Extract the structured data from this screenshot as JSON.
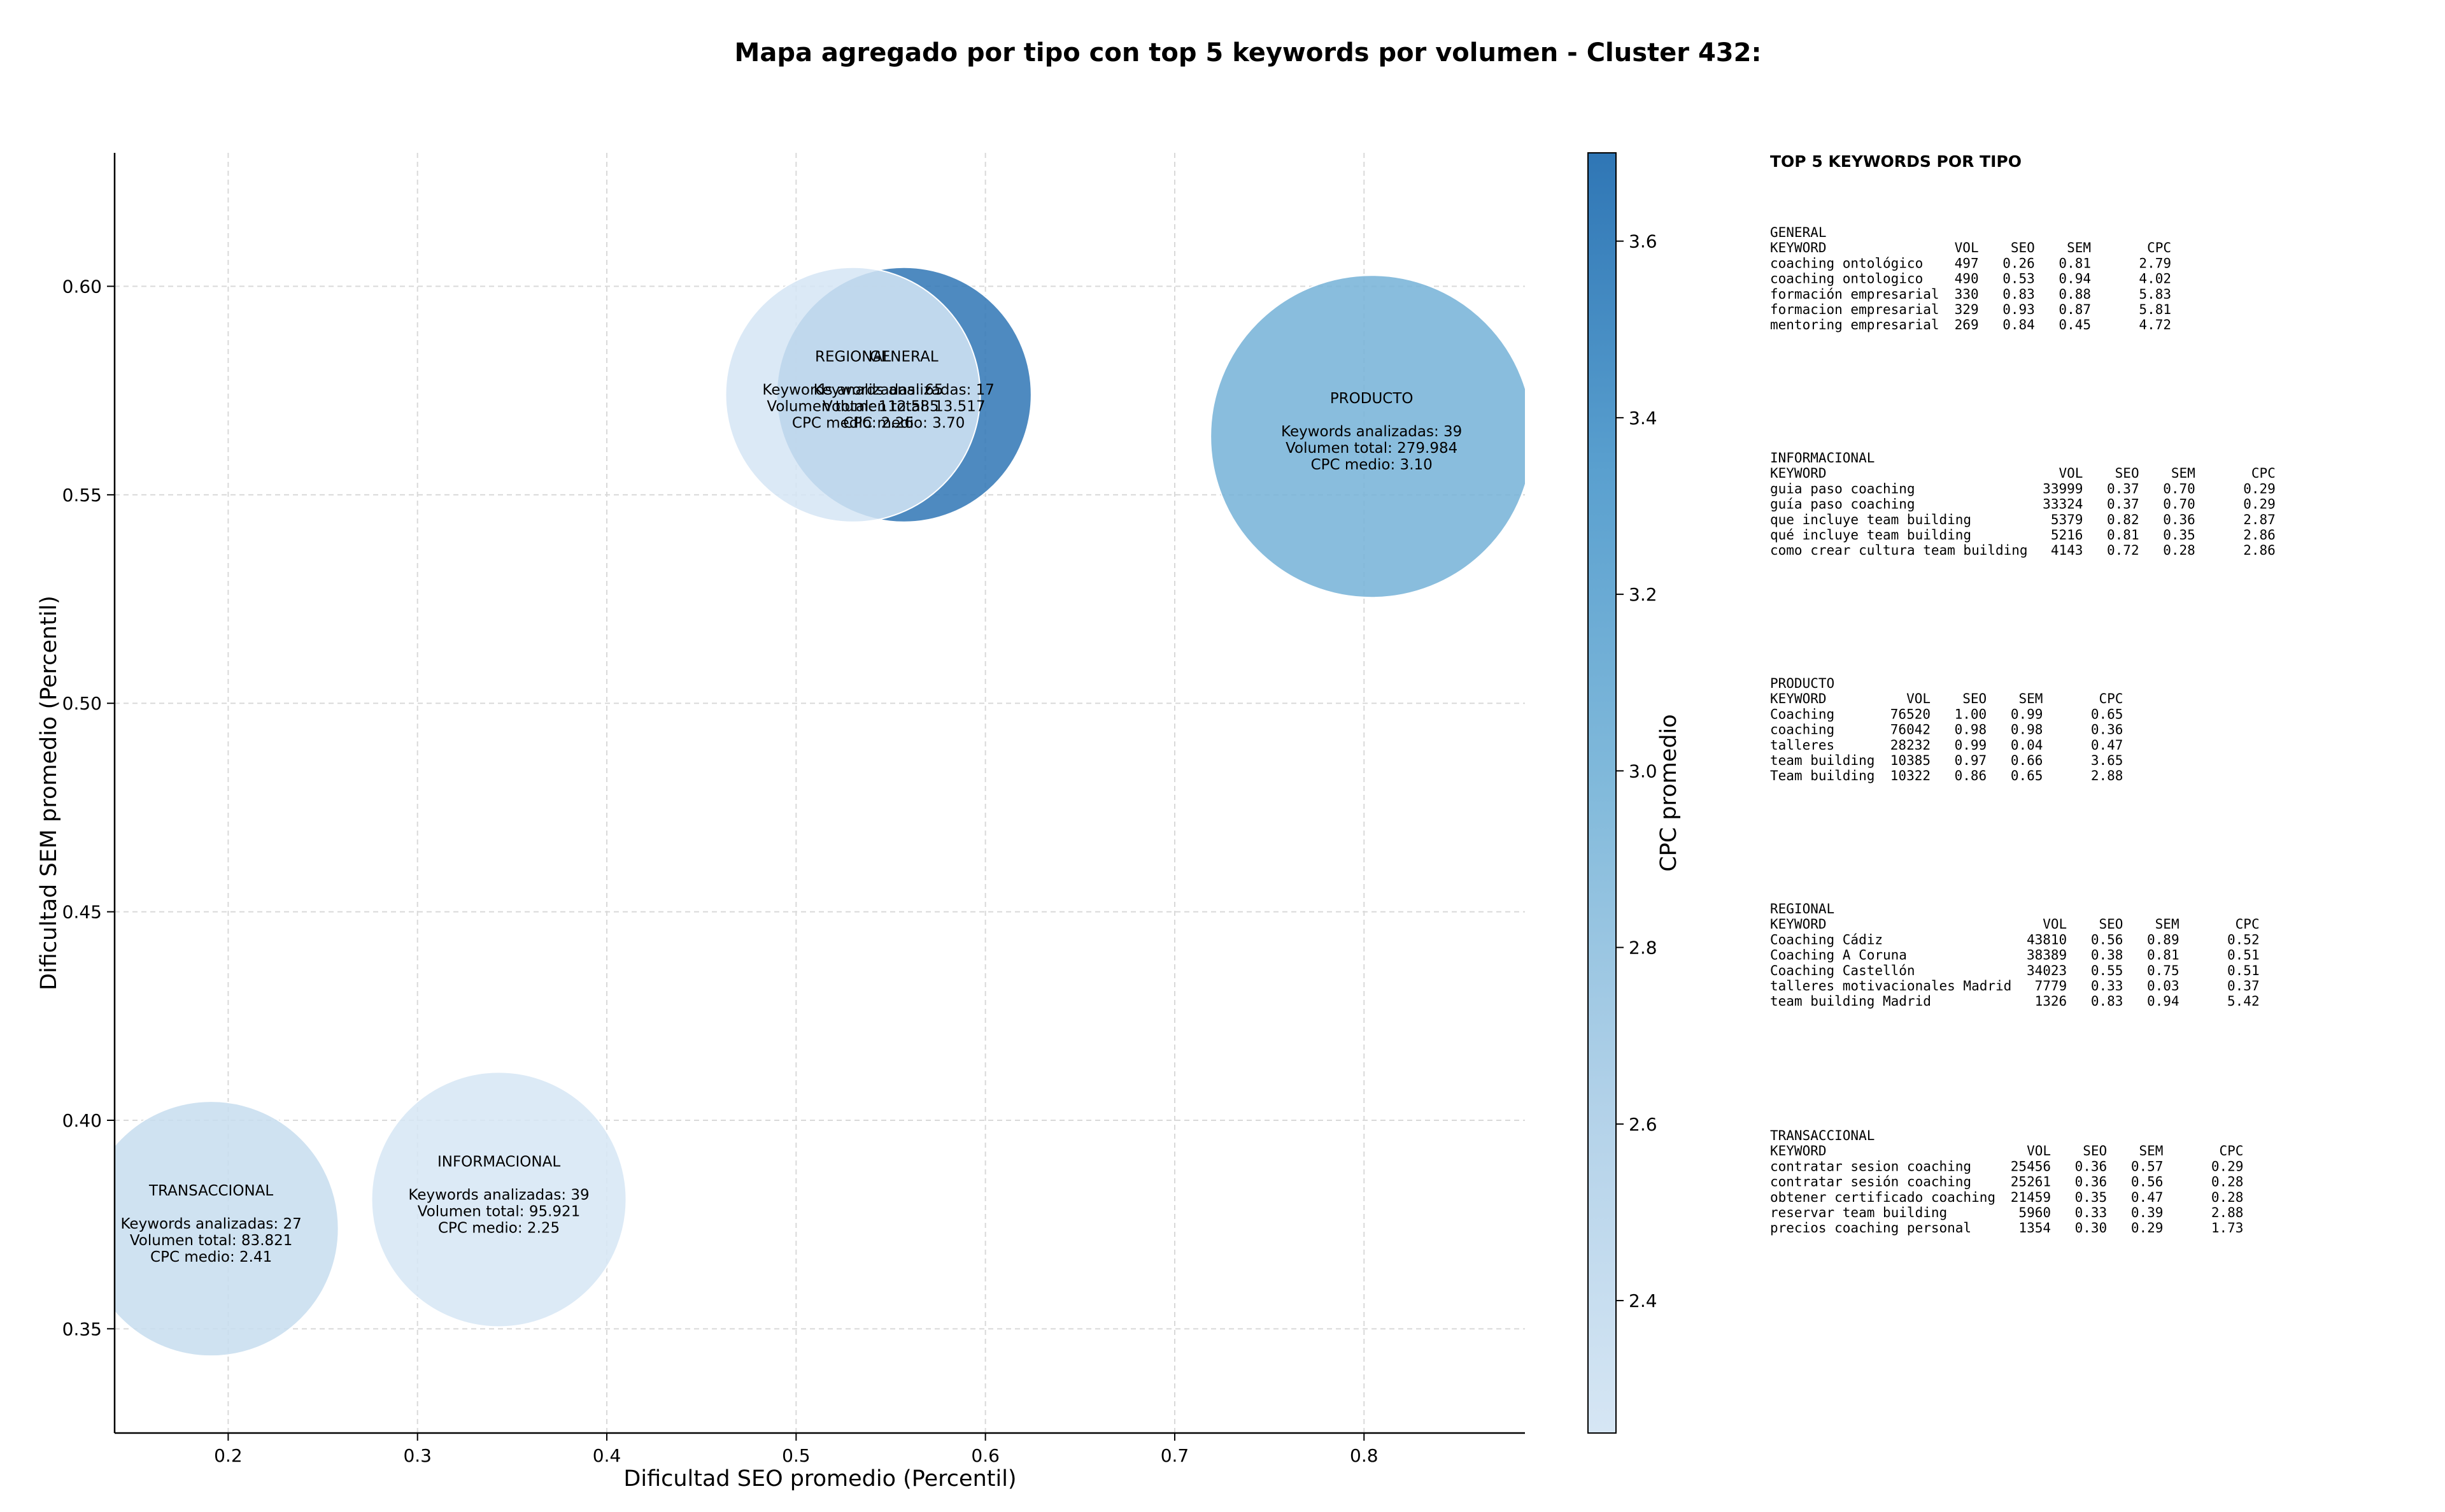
{
  "chart_data": {
    "type": "scatter",
    "subtype": "bubble",
    "title": "Mapa agregado por tipo con top 5 keywords por volumen - Cluster 432:",
    "xlabel": "Dificultad SEO promedio (Percentil)",
    "ylabel": "Dificultad SEM promedio (Percentil)",
    "xlim": [
      0.14,
      0.885
    ],
    "ylim": [
      0.325,
      0.632
    ],
    "x_ticks": [
      0.2,
      0.3,
      0.4,
      0.5,
      0.6,
      0.7,
      0.8
    ],
    "x_tick_labels": [
      "0.2",
      "0.3",
      "0.4",
      "0.5",
      "0.6",
      "0.7",
      "0.8"
    ],
    "y_ticks": [
      0.35,
      0.4,
      0.45,
      0.5,
      0.55,
      0.6
    ],
    "y_tick_labels": [
      "0.35",
      "0.40",
      "0.45",
      "0.50",
      "0.55",
      "0.60"
    ],
    "grid": true,
    "colorbar": {
      "label": "CPC promedio",
      "min": 2.25,
      "max": 3.7,
      "ticks": [
        2.4,
        2.6,
        2.8,
        3.0,
        3.2,
        3.4,
        3.6
      ],
      "tick_labels": [
        "2.4",
        "2.6",
        "2.8",
        "3.0",
        "3.2",
        "3.4",
        "3.6"
      ]
    },
    "points": [
      {
        "name": "GENERAL",
        "x": 0.557,
        "y": 0.574,
        "size": 13517,
        "cpc": 3.7,
        "lines": [
          "Keywords analizadas: 17",
          "Volumen total: 13.517",
          "CPC medio: 3.70"
        ]
      },
      {
        "name": "PRODUCTO",
        "x": 0.804,
        "y": 0.564,
        "size": 279984,
        "cpc": 3.1,
        "lines": [
          "Keywords analizadas: 39",
          "Volumen total: 279.984",
          "CPC medio: 3.10"
        ]
      },
      {
        "name": "REGIONAL",
        "x": 0.53,
        "y": 0.574,
        "size": 112585,
        "cpc": 2.26,
        "lines": [
          "Keywords analizadas: 65",
          "Volumen total: 112.585",
          "CPC medio: 2.26"
        ]
      },
      {
        "name": "INFORMACIONAL",
        "x": 0.343,
        "y": 0.381,
        "size": 95921,
        "cpc": 2.25,
        "lines": [
          "Keywords analizadas: 39",
          "Volumen total: 95.921",
          "CPC medio: 2.25"
        ]
      },
      {
        "name": "TRANSACCIONAL",
        "x": 0.191,
        "y": 0.374,
        "size": 83821,
        "cpc": 2.41,
        "lines": [
          "Keywords analizadas: 27",
          "Volumen total: 83.821",
          "CPC medio: 2.41"
        ]
      }
    ]
  },
  "panel": {
    "heading": "TOP 5 KEYWORDS POR TIPO",
    "header_cols": [
      "KEYWORD",
      "VOL",
      "SEO",
      "SEM",
      "CPC"
    ],
    "groups": [
      {
        "name": "GENERAL",
        "rows": [
          [
            "coaching ontológico",
            "497",
            "0.26",
            "0.81",
            "2.79"
          ],
          [
            "coaching ontologico",
            "490",
            "0.53",
            "0.94",
            "4.02"
          ],
          [
            "formación empresarial",
            "330",
            "0.83",
            "0.88",
            "5.83"
          ],
          [
            "formacion empresarial",
            "329",
            "0.93",
            "0.87",
            "5.81"
          ],
          [
            "mentoring empresarial",
            "269",
            "0.84",
            "0.45",
            "4.72"
          ]
        ]
      },
      {
        "name": "INFORMACIONAL",
        "rows": [
          [
            "guia paso coaching",
            "33999",
            "0.37",
            "0.70",
            "0.29"
          ],
          [
            "guía paso coaching",
            "33324",
            "0.37",
            "0.70",
            "0.29"
          ],
          [
            "que incluye team building",
            "5379",
            "0.82",
            "0.36",
            "2.87"
          ],
          [
            "qué incluye team building",
            "5216",
            "0.81",
            "0.35",
            "2.86"
          ],
          [
            "como crear cultura team building",
            "4143",
            "0.72",
            "0.28",
            "2.86"
          ]
        ]
      },
      {
        "name": "PRODUCTO",
        "rows": [
          [
            "Coaching",
            "76520",
            "1.00",
            "0.99",
            "0.65"
          ],
          [
            "coaching",
            "76042",
            "0.98",
            "0.98",
            "0.36"
          ],
          [
            "talleres",
            "28232",
            "0.99",
            "0.04",
            "0.47"
          ],
          [
            "team building",
            "10385",
            "0.97",
            "0.66",
            "3.65"
          ],
          [
            "Team building",
            "10322",
            "0.86",
            "0.65",
            "2.88"
          ]
        ]
      },
      {
        "name": "REGIONAL",
        "rows": [
          [
            "Coaching Cádiz",
            "43810",
            "0.56",
            "0.89",
            "0.52"
          ],
          [
            "Coaching A Coruna",
            "38389",
            "0.38",
            "0.81",
            "0.51"
          ],
          [
            "Coaching Castellón",
            "34023",
            "0.55",
            "0.75",
            "0.51"
          ],
          [
            "talleres motivacionales Madrid",
            "7779",
            "0.33",
            "0.03",
            "0.37"
          ],
          [
            "team building Madrid",
            "1326",
            "0.83",
            "0.94",
            "5.42"
          ]
        ]
      },
      {
        "name": "TRANSACCIONAL",
        "rows": [
          [
            "contratar sesion coaching",
            "25456",
            "0.36",
            "0.57",
            "0.29"
          ],
          [
            "contratar sesión coaching",
            "25261",
            "0.36",
            "0.56",
            "0.28"
          ],
          [
            "obtener certificado coaching",
            "21459",
            "0.35",
            "0.47",
            "0.28"
          ],
          [
            "reservar team building",
            "5960",
            "0.33",
            "0.39",
            "2.88"
          ],
          [
            "precios coaching personal",
            "1354",
            "0.30",
            "0.29",
            "1.73"
          ]
        ]
      }
    ]
  }
}
